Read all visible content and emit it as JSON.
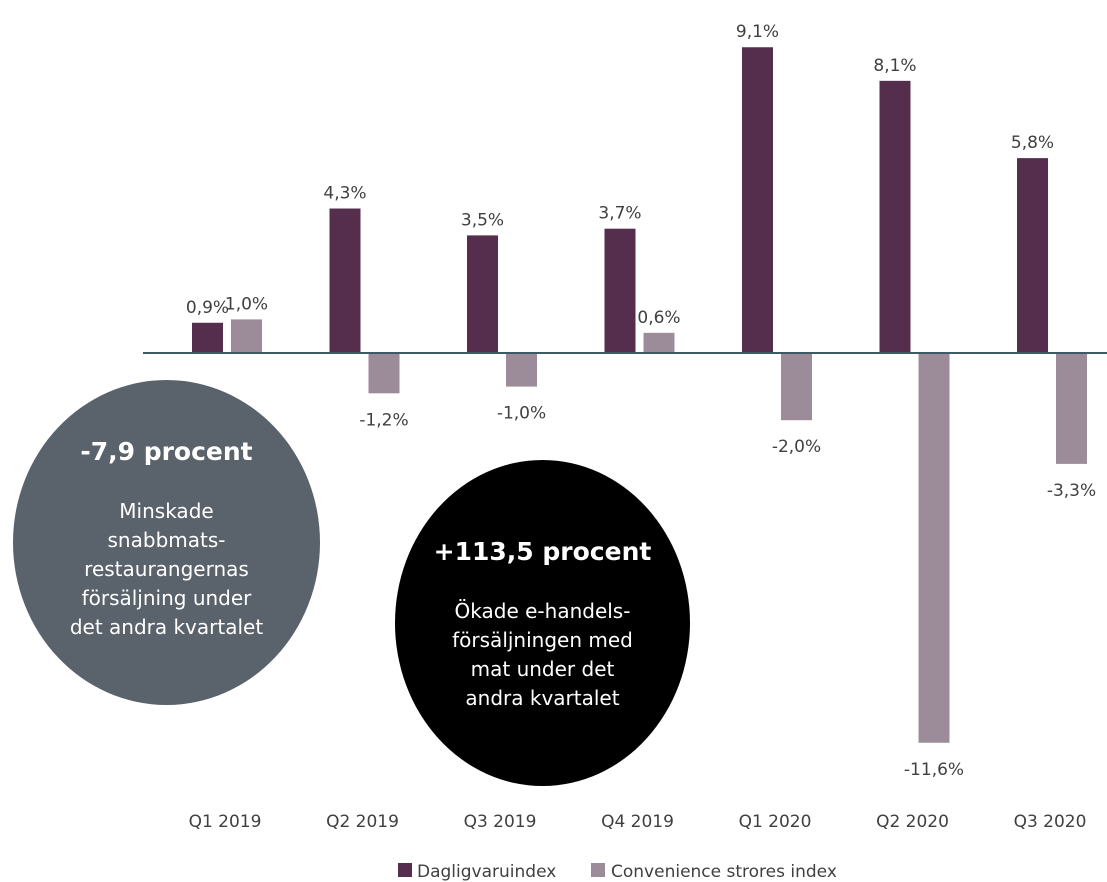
{
  "chart_data": {
    "type": "bar",
    "title": "",
    "xlabel": "",
    "ylabel": "",
    "categories": [
      "Q1 2019",
      "Q2 2019",
      "Q3 2019",
      "Q4 2019",
      "Q1 2020",
      "Q2 2020",
      "Q3 2020"
    ],
    "series": [
      {
        "name": "Dagligvaruindex",
        "values": [
          0.9,
          4.3,
          3.5,
          3.7,
          9.1,
          8.1,
          5.8
        ],
        "labels": [
          "0,9%",
          "4,3%",
          "3,5%",
          "3,7%",
          "9,1%",
          "8,1%",
          "5,8%"
        ],
        "color": "#552e4e"
      },
      {
        "name": "Convenience strores index",
        "values": [
          1.0,
          -1.2,
          -1.0,
          0.6,
          -2.0,
          -11.6,
          -3.3
        ],
        "labels": [
          "1,0%",
          "-1,2%",
          "-1,0%",
          "0,6%",
          "-2,0%",
          "-11,6%",
          "-3,3%"
        ],
        "color": "#9c8c99"
      }
    ],
    "ylim": [
      -11.6,
      9.1
    ],
    "grid": false,
    "legend_position": "bottom-center",
    "axis_color": "#3f5a67"
  },
  "callouts": [
    {
      "headline": "-7,9 procent",
      "body": "Minskade snabbmats-restaurangernas försäljning under det andra kvartalet",
      "color": "#5a626c"
    },
    {
      "headline": "+113,5 procent",
      "body": "Ökade e-handels-försäljningen med mat under det andra kvartalet",
      "color": "#000000"
    }
  ]
}
